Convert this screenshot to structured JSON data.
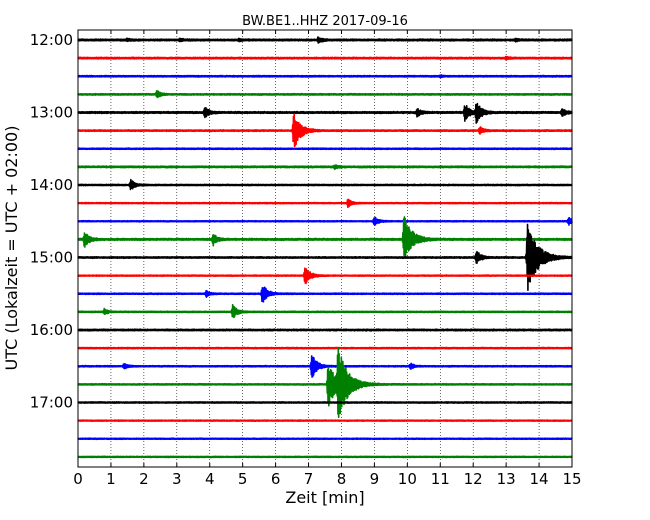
{
  "chart_data": {
    "type": "line",
    "title": "BW.BE1..HHZ 2017-09-16",
    "xlabel": "Zeit  [min]",
    "ylabel": "UTC (Lokalzeit = UTC + 02:00)",
    "xlim": [
      0,
      15
    ],
    "x_ticks": [
      "0",
      "1",
      "2",
      "3",
      "4",
      "5",
      "6",
      "7",
      "8",
      "9",
      "10",
      "11",
      "12",
      "13",
      "14",
      "15"
    ],
    "y_tick_labels": [
      "12:00",
      "13:00",
      "14:00",
      "15:00",
      "16:00",
      "17:00"
    ],
    "trace_interval_minutes": 15,
    "grid": "vertical dotted",
    "colors": [
      "#000000",
      "#ff0000",
      "#0000ff",
      "#008000"
    ],
    "traces": [
      {
        "start": "12:00",
        "noise": 0.1,
        "events": [
          {
            "t": 1.5,
            "amp": 0.12
          },
          {
            "t": 3.1,
            "amp": 0.12
          },
          {
            "t": 4.9,
            "amp": 0.1
          },
          {
            "t": 7.3,
            "amp": 0.3
          },
          {
            "t": 13.3,
            "amp": 0.12
          }
        ]
      },
      {
        "start": "12:15",
        "noise": 0.09,
        "events": [
          {
            "t": 13.0,
            "amp": 0.12
          }
        ]
      },
      {
        "start": "12:30",
        "noise": 0.08,
        "events": [
          {
            "t": 11.0,
            "amp": 0.1
          }
        ]
      },
      {
        "start": "12:45",
        "noise": 0.08,
        "events": [
          {
            "t": 2.4,
            "amp": 0.35
          }
        ]
      },
      {
        "start": "13:00",
        "noise": 0.1,
        "events": [
          {
            "t": 3.85,
            "amp": 0.6
          },
          {
            "t": 10.3,
            "amp": 0.4
          },
          {
            "t": 11.75,
            "amp": 0.9
          },
          {
            "t": 12.1,
            "amp": 1.0
          },
          {
            "t": 14.7,
            "amp": 0.4
          }
        ]
      },
      {
        "start": "13:15",
        "noise": 0.08,
        "events": [
          {
            "t": 6.55,
            "amp": 1.9
          },
          {
            "t": 12.2,
            "amp": 0.4
          }
        ]
      },
      {
        "start": "13:30",
        "noise": 0.07,
        "events": []
      },
      {
        "start": "13:45",
        "noise": 0.09,
        "events": [
          {
            "t": 7.8,
            "amp": 0.2
          }
        ]
      },
      {
        "start": "14:00",
        "noise": 0.07,
        "events": [
          {
            "t": 1.6,
            "amp": 0.6
          }
        ]
      },
      {
        "start": "14:15",
        "noise": 0.06,
        "events": [
          {
            "t": 8.2,
            "amp": 0.4
          }
        ]
      },
      {
        "start": "14:30",
        "noise": 0.06,
        "events": [
          {
            "t": 9.0,
            "amp": 0.5
          },
          {
            "t": 14.9,
            "amp": 0.4
          }
        ]
      },
      {
        "start": "14:45",
        "noise": 0.1,
        "events": [
          {
            "t": 0.2,
            "amp": 0.8
          },
          {
            "t": 4.1,
            "amp": 0.6
          },
          {
            "t": 9.9,
            "amp": 2.4
          }
        ]
      },
      {
        "start": "15:00",
        "noise": 0.08,
        "events": [
          {
            "t": 12.1,
            "amp": 0.7
          },
          {
            "t": 13.65,
            "amp": 3.5
          }
        ]
      },
      {
        "start": "15:15",
        "noise": 0.06,
        "events": [
          {
            "t": 6.9,
            "amp": 1.0
          }
        ]
      },
      {
        "start": "15:30",
        "noise": 0.07,
        "events": [
          {
            "t": 3.9,
            "amp": 0.3
          },
          {
            "t": 5.6,
            "amp": 1.0
          }
        ]
      },
      {
        "start": "15:45",
        "noise": 0.07,
        "events": [
          {
            "t": 0.8,
            "amp": 0.3
          },
          {
            "t": 4.7,
            "amp": 0.7
          }
        ]
      },
      {
        "start": "16:00",
        "noise": 0.09,
        "events": []
      },
      {
        "start": "16:15",
        "noise": 0.07,
        "events": []
      },
      {
        "start": "16:30",
        "noise": 0.07,
        "events": [
          {
            "t": 1.4,
            "amp": 0.3
          },
          {
            "t": 7.1,
            "amp": 1.2
          },
          {
            "t": 10.1,
            "amp": 0.3
          }
        ]
      },
      {
        "start": "16:45",
        "noise": 0.07,
        "events": [
          {
            "t": 7.6,
            "amp": 2.4
          },
          {
            "t": 7.9,
            "amp": 3.3
          }
        ]
      },
      {
        "start": "17:00",
        "noise": 0.07,
        "events": []
      },
      {
        "start": "17:15",
        "noise": 0.06,
        "events": []
      },
      {
        "start": "17:30",
        "noise": 0.06,
        "events": []
      },
      {
        "start": "17:45",
        "noise": 0.06,
        "events": []
      }
    ]
  }
}
